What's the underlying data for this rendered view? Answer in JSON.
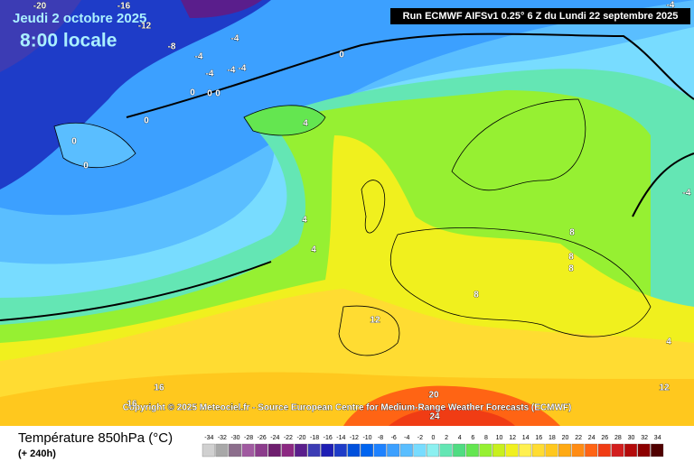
{
  "header": {
    "date": "Jeudi 2 octobre 2025",
    "time": "8:00 locale",
    "run": "Run ECMWF AIFSv1 0.25° 6 Z du Lundi 22 septembre 2025"
  },
  "copyright": "Copyright © 2025 Meteociel.fr - Source European Centre for Medium-Range Weather Forecasts (ECMWF)",
  "contour_labels": [
    "-20",
    "-16",
    "-12",
    "-8",
    "-4",
    "-4",
    "-4",
    "-4",
    "-4",
    "4",
    "0",
    "0",
    "0",
    "0",
    "0",
    "0",
    "0",
    "4",
    "4",
    "8",
    "8",
    "8",
    "8",
    "12",
    "16",
    "16",
    "20",
    "24",
    "12",
    "4",
    "-4",
    "-4"
  ],
  "footer": {
    "title": "Température 850hPa (°C)",
    "lead": "(+ 240h)"
  },
  "legend": {
    "ticks": [
      -34,
      -32,
      -30,
      -28,
      -26,
      -24,
      -22,
      -20,
      -18,
      -16,
      -14,
      -12,
      -10,
      -8,
      -6,
      -4,
      -2,
      0,
      2,
      4,
      6,
      8,
      10,
      12,
      14,
      16,
      18,
      20,
      22,
      24,
      26,
      28,
      30,
      32,
      34
    ],
    "colors": [
      "#d0d0d0",
      "#a8a8a8",
      "#8c6e8c",
      "#a05aa0",
      "#8c3c8c",
      "#6e1e6e",
      "#8c2882",
      "#5a1e8c",
      "#3c3cb4",
      "#1e1eb4",
      "#1e3cc8",
      "#0050dc",
      "#0064f0",
      "#1e82ff",
      "#3ca0ff",
      "#5abeff",
      "#78dcff",
      "#8cf0f0",
      "#64e6b4",
      "#50dc82",
      "#64e650",
      "#96f032",
      "#c8f01e",
      "#f0f01e",
      "#fff050",
      "#ffdc32",
      "#ffc81e",
      "#ffaa14",
      "#ff8c14",
      "#ff6414",
      "#f03c14",
      "#d21e1e",
      "#b40a0a",
      "#8c0000",
      "#500000"
    ]
  }
}
